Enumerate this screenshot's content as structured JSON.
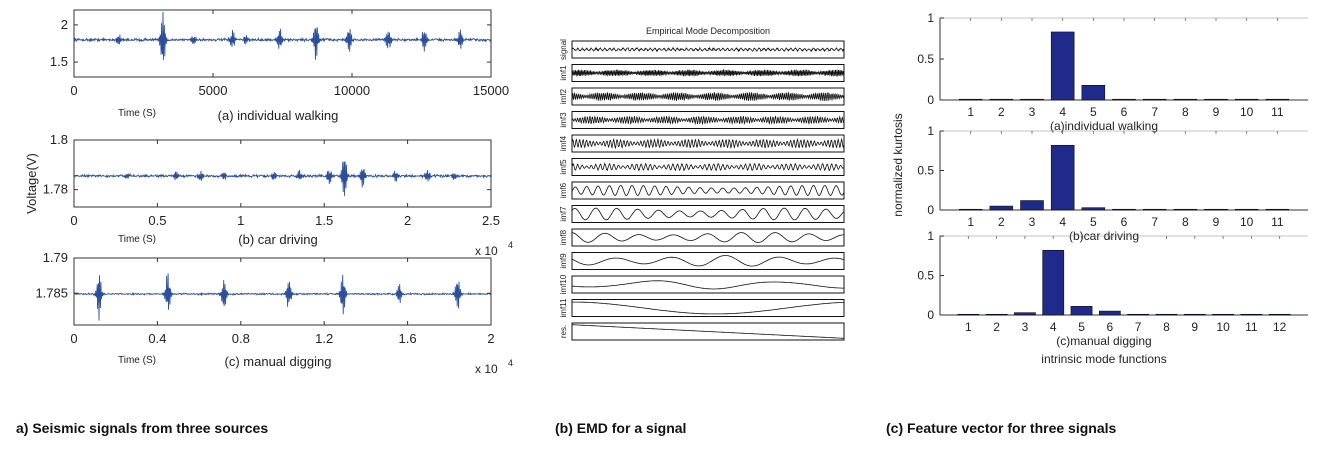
{
  "captions": {
    "a": "a) Seismic signals from three sources",
    "b": "(b) EMD for a signal",
    "c": "(c) Feature vector for three signals"
  },
  "chart_data": [
    {
      "type": "line",
      "id": "walking",
      "panel": "a",
      "subtitle": "(a) individual walking",
      "xlabel": "Time (S)",
      "ylabel": "",
      "xlim": [
        0,
        15000
      ],
      "ylim": [
        1.3,
        2.2
      ],
      "xticks": [
        "0",
        "5000",
        "10000",
        "15000"
      ],
      "xtick_values": [
        0,
        5000,
        10000,
        15000
      ],
      "yticks": [
        "1.5",
        "2"
      ],
      "ytick_values": [
        1.5,
        2.0
      ],
      "multiplier": "",
      "series": [
        {
          "baseline": 1.8,
          "noise": 0.025,
          "bursts": [
            {
              "x": 1600,
              "amp": 0.1
            },
            {
              "x": 3200,
              "amp": 0.45
            },
            {
              "x": 4300,
              "amp": 0.08
            },
            {
              "x": 5700,
              "amp": 0.15
            },
            {
              "x": 6200,
              "amp": 0.08
            },
            {
              "x": 7400,
              "amp": 0.18
            },
            {
              "x": 8700,
              "amp": 0.32
            },
            {
              "x": 9900,
              "amp": 0.2
            },
            {
              "x": 11300,
              "amp": 0.2
            },
            {
              "x": 12600,
              "amp": 0.2
            },
            {
              "x": 13900,
              "amp": 0.15
            }
          ]
        }
      ]
    },
    {
      "type": "line",
      "id": "car",
      "panel": "a",
      "subtitle": "(b) car driving",
      "xlabel": "Time (S)",
      "ylabel": "Voltage(V)",
      "xlim": [
        0,
        25000
      ],
      "ylim": [
        1.773,
        1.8
      ],
      "xticks": [
        "0",
        "0.5",
        "1",
        "1.5",
        "2",
        "2.5"
      ],
      "xtick_values": [
        0,
        5000,
        10000,
        15000,
        20000,
        25000
      ],
      "yticks": [
        "1.78",
        "1.8"
      ],
      "ytick_values": [
        1.78,
        1.8
      ],
      "multiplier": "x 10",
      "multiplier_exp": "4",
      "series": [
        {
          "baseline": 1.7855,
          "noise": 0.0007,
          "bursts": [
            {
              "x": 3200,
              "amp": 0.0015
            },
            {
              "x": 6100,
              "amp": 0.0022
            },
            {
              "x": 7600,
              "amp": 0.0025
            },
            {
              "x": 9000,
              "amp": 0.0018
            },
            {
              "x": 12000,
              "amp": 0.002
            },
            {
              "x": 13500,
              "amp": 0.0025
            },
            {
              "x": 15300,
              "amp": 0.004
            },
            {
              "x": 16200,
              "amp": 0.012
            },
            {
              "x": 17300,
              "amp": 0.006
            },
            {
              "x": 19300,
              "amp": 0.003
            },
            {
              "x": 21200,
              "amp": 0.003
            },
            {
              "x": 22800,
              "amp": 0.002
            }
          ]
        }
      ]
    },
    {
      "type": "line",
      "id": "digging",
      "panel": "a",
      "subtitle": "(c) manual digging",
      "xlabel": "Time (S)",
      "ylabel": "",
      "xlim": [
        0,
        20000
      ],
      "ylim": [
        1.7805,
        1.79
      ],
      "xticks": [
        "0",
        "0.4",
        "0.8",
        "1.2",
        "1.6",
        "2"
      ],
      "xtick_values": [
        0,
        4000,
        8000,
        12000,
        16000,
        20000
      ],
      "yticks": [
        "1.785",
        "1.79"
      ],
      "ytick_values": [
        1.785,
        1.79
      ],
      "multiplier": "x 10",
      "multiplier_exp": "4",
      "series": [
        {
          "baseline": 1.7849,
          "noise": 0.00015,
          "bursts": [
            {
              "x": 1200,
              "amp": 0.004
            },
            {
              "x": 4500,
              "amp": 0.0034
            },
            {
              "x": 7200,
              "amp": 0.003
            },
            {
              "x": 10300,
              "amp": 0.0024
            },
            {
              "x": 12900,
              "amp": 0.0036
            },
            {
              "x": 15600,
              "amp": 0.0017
            },
            {
              "x": 18400,
              "amp": 0.0028
            }
          ]
        }
      ]
    },
    {
      "type": "line",
      "id": "emd",
      "panel": "b",
      "title": "Empirical Mode Decomposition",
      "rows": [
        {
          "label": "signal",
          "kind": "noise",
          "freq": 60,
          "amp": 0.25
        },
        {
          "label": "imf1",
          "kind": "burst",
          "freq": 90,
          "amp": 0.45
        },
        {
          "label": "imf2",
          "kind": "burst",
          "freq": 70,
          "amp": 0.55
        },
        {
          "label": "imf3",
          "kind": "burst",
          "freq": 55,
          "amp": 0.5
        },
        {
          "label": "imf4",
          "kind": "burst",
          "freq": 40,
          "amp": 0.55
        },
        {
          "label": "imf5",
          "kind": "burst",
          "freq": 30,
          "amp": 0.45
        },
        {
          "label": "imf6",
          "kind": "wave",
          "freq": 24,
          "amp": 0.6
        },
        {
          "label": "imf7",
          "kind": "wave",
          "freq": 13,
          "amp": 0.7
        },
        {
          "label": "imf8",
          "kind": "wave",
          "freq": 8,
          "amp": 0.6
        },
        {
          "label": "imf9",
          "kind": "wave",
          "freq": 5,
          "amp": 0.65
        },
        {
          "label": "imf10",
          "kind": "wave",
          "freq": 2.2,
          "amp": 0.55
        },
        {
          "label": "imf11",
          "kind": "bowl",
          "freq": 1,
          "amp": 0.7
        },
        {
          "label": "res.",
          "kind": "ramp",
          "freq": 0,
          "amp": 0.8
        }
      ]
    },
    {
      "type": "bar",
      "id": "kurt_walking",
      "panel": "c",
      "subtitle": "(a)individual walking",
      "xlabel": "",
      "ylabel": "",
      "categories": [
        "1",
        "2",
        "3",
        "4",
        "5",
        "6",
        "7",
        "8",
        "9",
        "10",
        "11"
      ],
      "values": [
        0.01,
        0.01,
        0.01,
        0.83,
        0.18,
        0.01,
        0.01,
        0.01,
        0.01,
        0.01,
        0.01
      ],
      "ylim": [
        0,
        1
      ],
      "yticks": [
        "0",
        "0.5",
        "1"
      ],
      "ytick_values": [
        0,
        0.5,
        1
      ]
    },
    {
      "type": "bar",
      "id": "kurt_car",
      "panel": "c",
      "subtitle": "(b)car driving",
      "xlabel": "",
      "ylabel": "normalized kurtosis",
      "categories": [
        "1",
        "2",
        "3",
        "4",
        "5",
        "6",
        "7",
        "8",
        "9",
        "10",
        "11"
      ],
      "values": [
        0.01,
        0.05,
        0.12,
        0.82,
        0.03,
        0.01,
        0.01,
        0.01,
        0.01,
        0.01,
        0.01
      ],
      "ylim": [
        0,
        1
      ],
      "yticks": [
        "0",
        "0.5",
        "1"
      ],
      "ytick_values": [
        0,
        0.5,
        1
      ]
    },
    {
      "type": "bar",
      "id": "kurt_digging",
      "panel": "c",
      "subtitle": "(c)manual digging",
      "xlabel": "intrinsic mode functions",
      "ylabel": "",
      "categories": [
        "1",
        "2",
        "3",
        "4",
        "5",
        "6",
        "7",
        "8",
        "9",
        "10",
        "11",
        "12"
      ],
      "values": [
        0.01,
        0.01,
        0.03,
        0.82,
        0.11,
        0.05,
        0.01,
        0.01,
        0.01,
        0.01,
        0.01,
        0.01
      ],
      "ylim": [
        0,
        1
      ],
      "yticks": [
        "0",
        "0.5",
        "1"
      ],
      "ytick_values": [
        0,
        0.5,
        1
      ]
    }
  ],
  "colors": {
    "signal": "#2b4f9a",
    "bar": "#1f2a8a",
    "axis": "#333333",
    "emd": "#111111"
  }
}
